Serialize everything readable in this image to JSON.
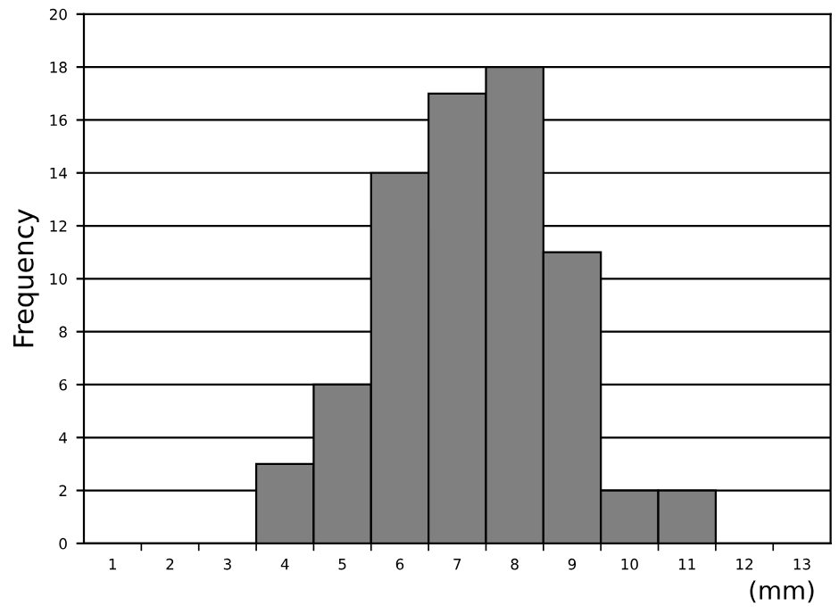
{
  "chart_data": {
    "type": "bar",
    "xlabel": "(mm)",
    "ylabel": "Frequency",
    "categories": [
      "1",
      "2",
      "3",
      "4",
      "5",
      "6",
      "7",
      "8",
      "9",
      "10",
      "11",
      "12",
      "13"
    ],
    "values": [
      0,
      0,
      0,
      3,
      6,
      14,
      17,
      18,
      11,
      2,
      2,
      0,
      0
    ],
    "color": "#808080",
    "ylim": [
      0,
      20
    ],
    "yticks": [
      0,
      2,
      4,
      6,
      8,
      10,
      12,
      14,
      16,
      18,
      20
    ],
    "grid": "y"
  }
}
